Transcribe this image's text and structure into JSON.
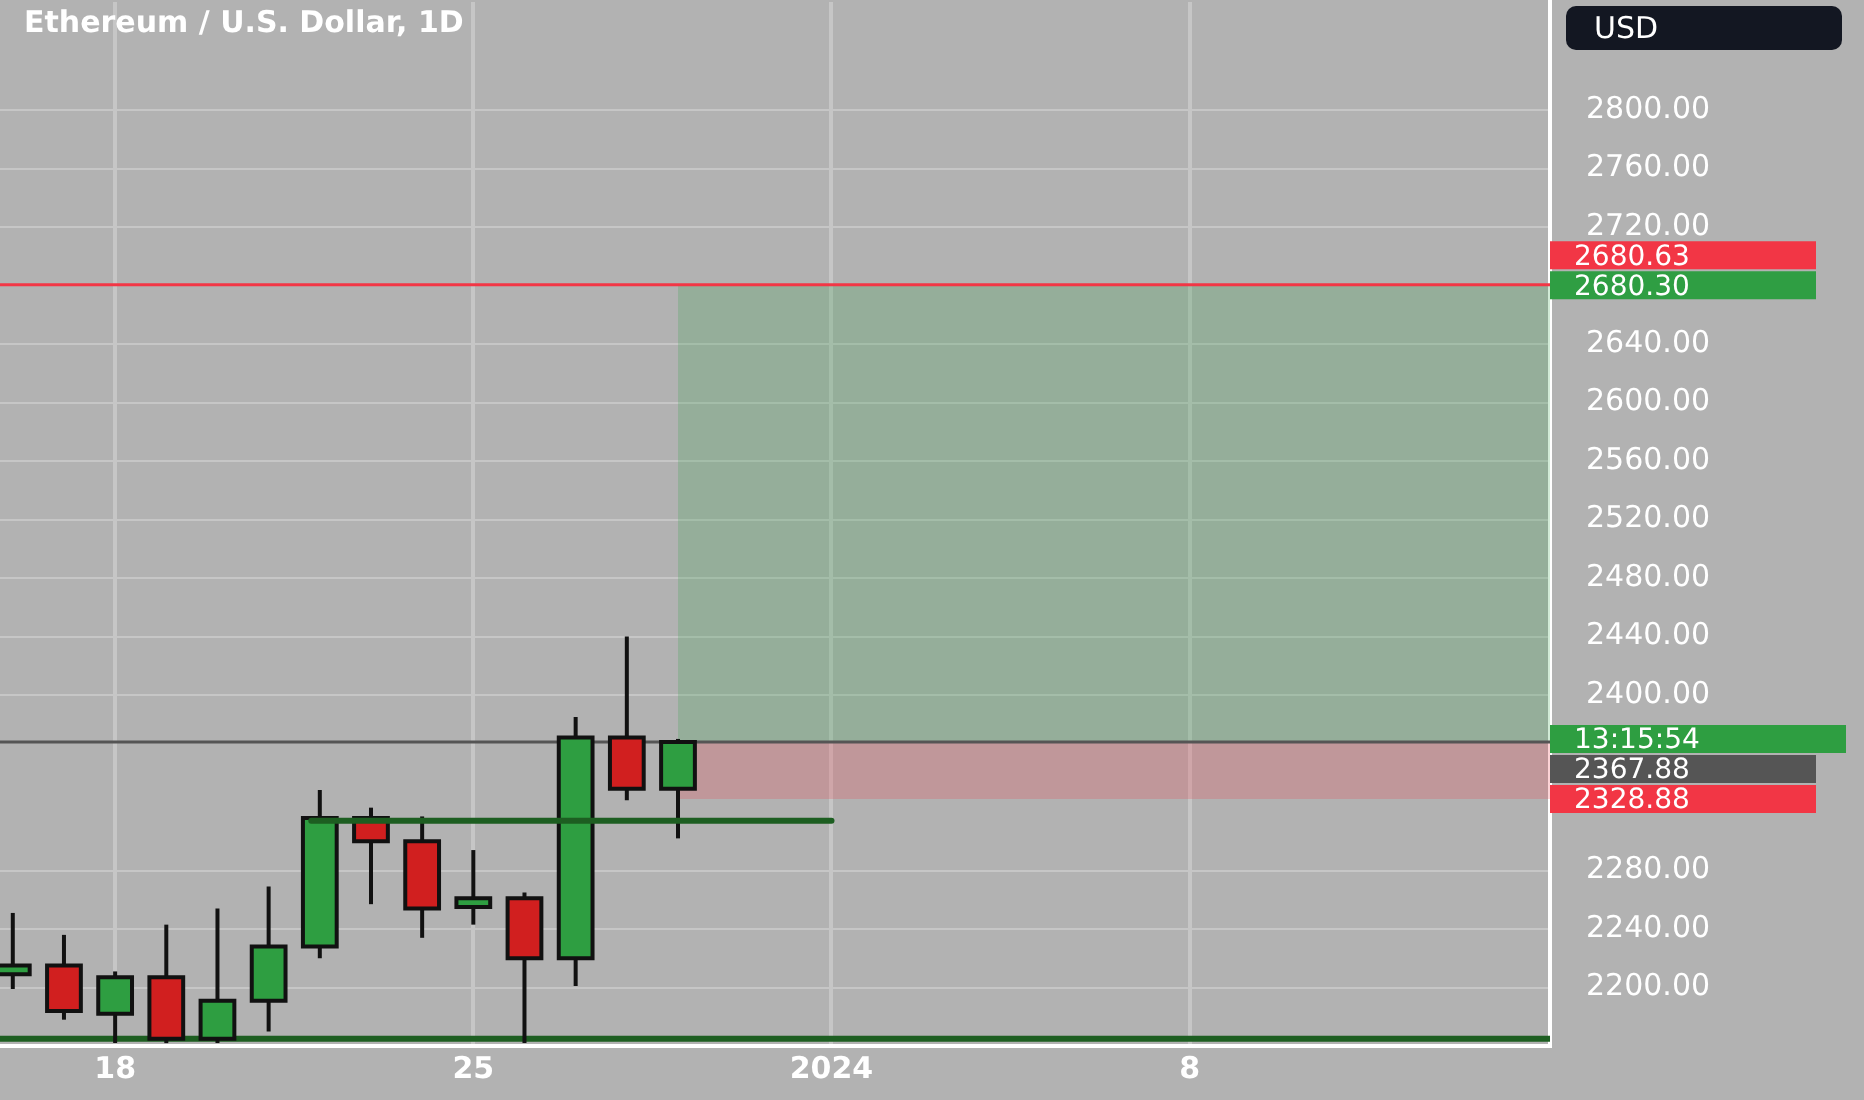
{
  "chart_data": {
    "type": "candlestick",
    "title": "Ethereum / U.S. Dollar, 1D",
    "x": [
      "2023-12-16",
      "2023-12-17",
      "2023-12-18",
      "2023-12-19",
      "2023-12-20",
      "2023-12-21",
      "2023-12-22",
      "2023-12-23",
      "2023-12-24",
      "2023-12-25",
      "2023-12-26",
      "2023-12-27",
      "2023-12-28",
      "2023-12-29"
    ],
    "ohlc": [
      [
        2209,
        2251,
        2199,
        2215
      ],
      [
        2215,
        2236,
        2178,
        2184
      ],
      [
        2182,
        2211,
        2162,
        2207
      ],
      [
        2207,
        2243,
        2162,
        2165
      ],
      [
        2165,
        2254,
        2162,
        2191
      ],
      [
        2191,
        2269,
        2170,
        2228
      ],
      [
        2228,
        2335,
        2220,
        2316
      ],
      [
        2316,
        2323,
        2257,
        2300
      ],
      [
        2300,
        2317,
        2234,
        2254
      ],
      [
        2255,
        2294,
        2243,
        2261
      ],
      [
        2261,
        2265,
        2162,
        2220
      ],
      [
        2220,
        2385,
        2201,
        2371
      ],
      [
        2371,
        2440,
        2328,
        2336
      ],
      [
        2336,
        2370,
        2302,
        2367.88
      ]
    ],
    "colors": [
      "#2e9e41",
      "#d11f1f",
      "#2e9e41",
      "#d11f1f",
      "#2e9e41",
      "#2e9e41",
      "#2e9e41",
      "#d11f1f",
      "#d11f1f",
      "#2e9e41",
      "#d11f1f",
      "#2e9e41",
      "#d11f1f",
      "#2e9e41"
    ],
    "series": [
      {
        "type": "line",
        "x": [
          "2023-12-21T20:00",
          "2024-01-01"
        ],
        "values": [
          2314,
          2314
        ],
        "color": "#1d5e21"
      }
    ],
    "ref_lines": [
      {
        "axis": "y",
        "value": 2680.63,
        "label": "2680.63",
        "color": "#f23645"
      },
      {
        "axis": "y",
        "value": 2367.88,
        "label": "2367.88",
        "color": "#555555"
      },
      {
        "axis": "y",
        "value": 2165,
        "color": "#1d5e21"
      }
    ],
    "bands": [
      {
        "axis": "y",
        "from": 2367.88,
        "to": 2680.3,
        "label": "2680.30",
        "color": "#2f9e43"
      },
      {
        "axis": "y",
        "from": 2367.88,
        "to": 2328.88,
        "label": "2328.88",
        "color": "#f23645"
      }
    ],
    "annotations": [
      "USD",
      "13:15:54"
    ],
    "xlim": [
      "2023-12-15T18:00",
      "2024-01-15T01:00"
    ],
    "xticks": [
      {
        "value": "2023-12-18",
        "label": "18"
      },
      {
        "value": "2023-12-25",
        "label": "25"
      },
      {
        "value": "2024-01-01",
        "label": "2024"
      },
      {
        "value": "2024-01-08",
        "label": "8"
      }
    ],
    "ylim": [
      2160,
      2874
    ],
    "yticks": [
      {
        "value": 2200,
        "label": "2200.00"
      },
      {
        "value": 2240,
        "label": "2240.00"
      },
      {
        "value": 2280,
        "label": "2280.00"
      },
      {
        "value": 2400,
        "label": "2400.00"
      },
      {
        "value": 2440,
        "label": "2440.00"
      },
      {
        "value": 2480,
        "label": "2480.00"
      },
      {
        "value": 2520,
        "label": "2520.00"
      },
      {
        "value": 2560,
        "label": "2560.00"
      },
      {
        "value": 2600,
        "label": "2600.00"
      },
      {
        "value": 2640,
        "label": "2640.00"
      },
      {
        "value": 2720,
        "label": "2720.00"
      },
      {
        "value": 2760,
        "label": "2760.00"
      },
      {
        "value": 2800,
        "label": "2800.00"
      }
    ],
    "grid": true
  }
}
